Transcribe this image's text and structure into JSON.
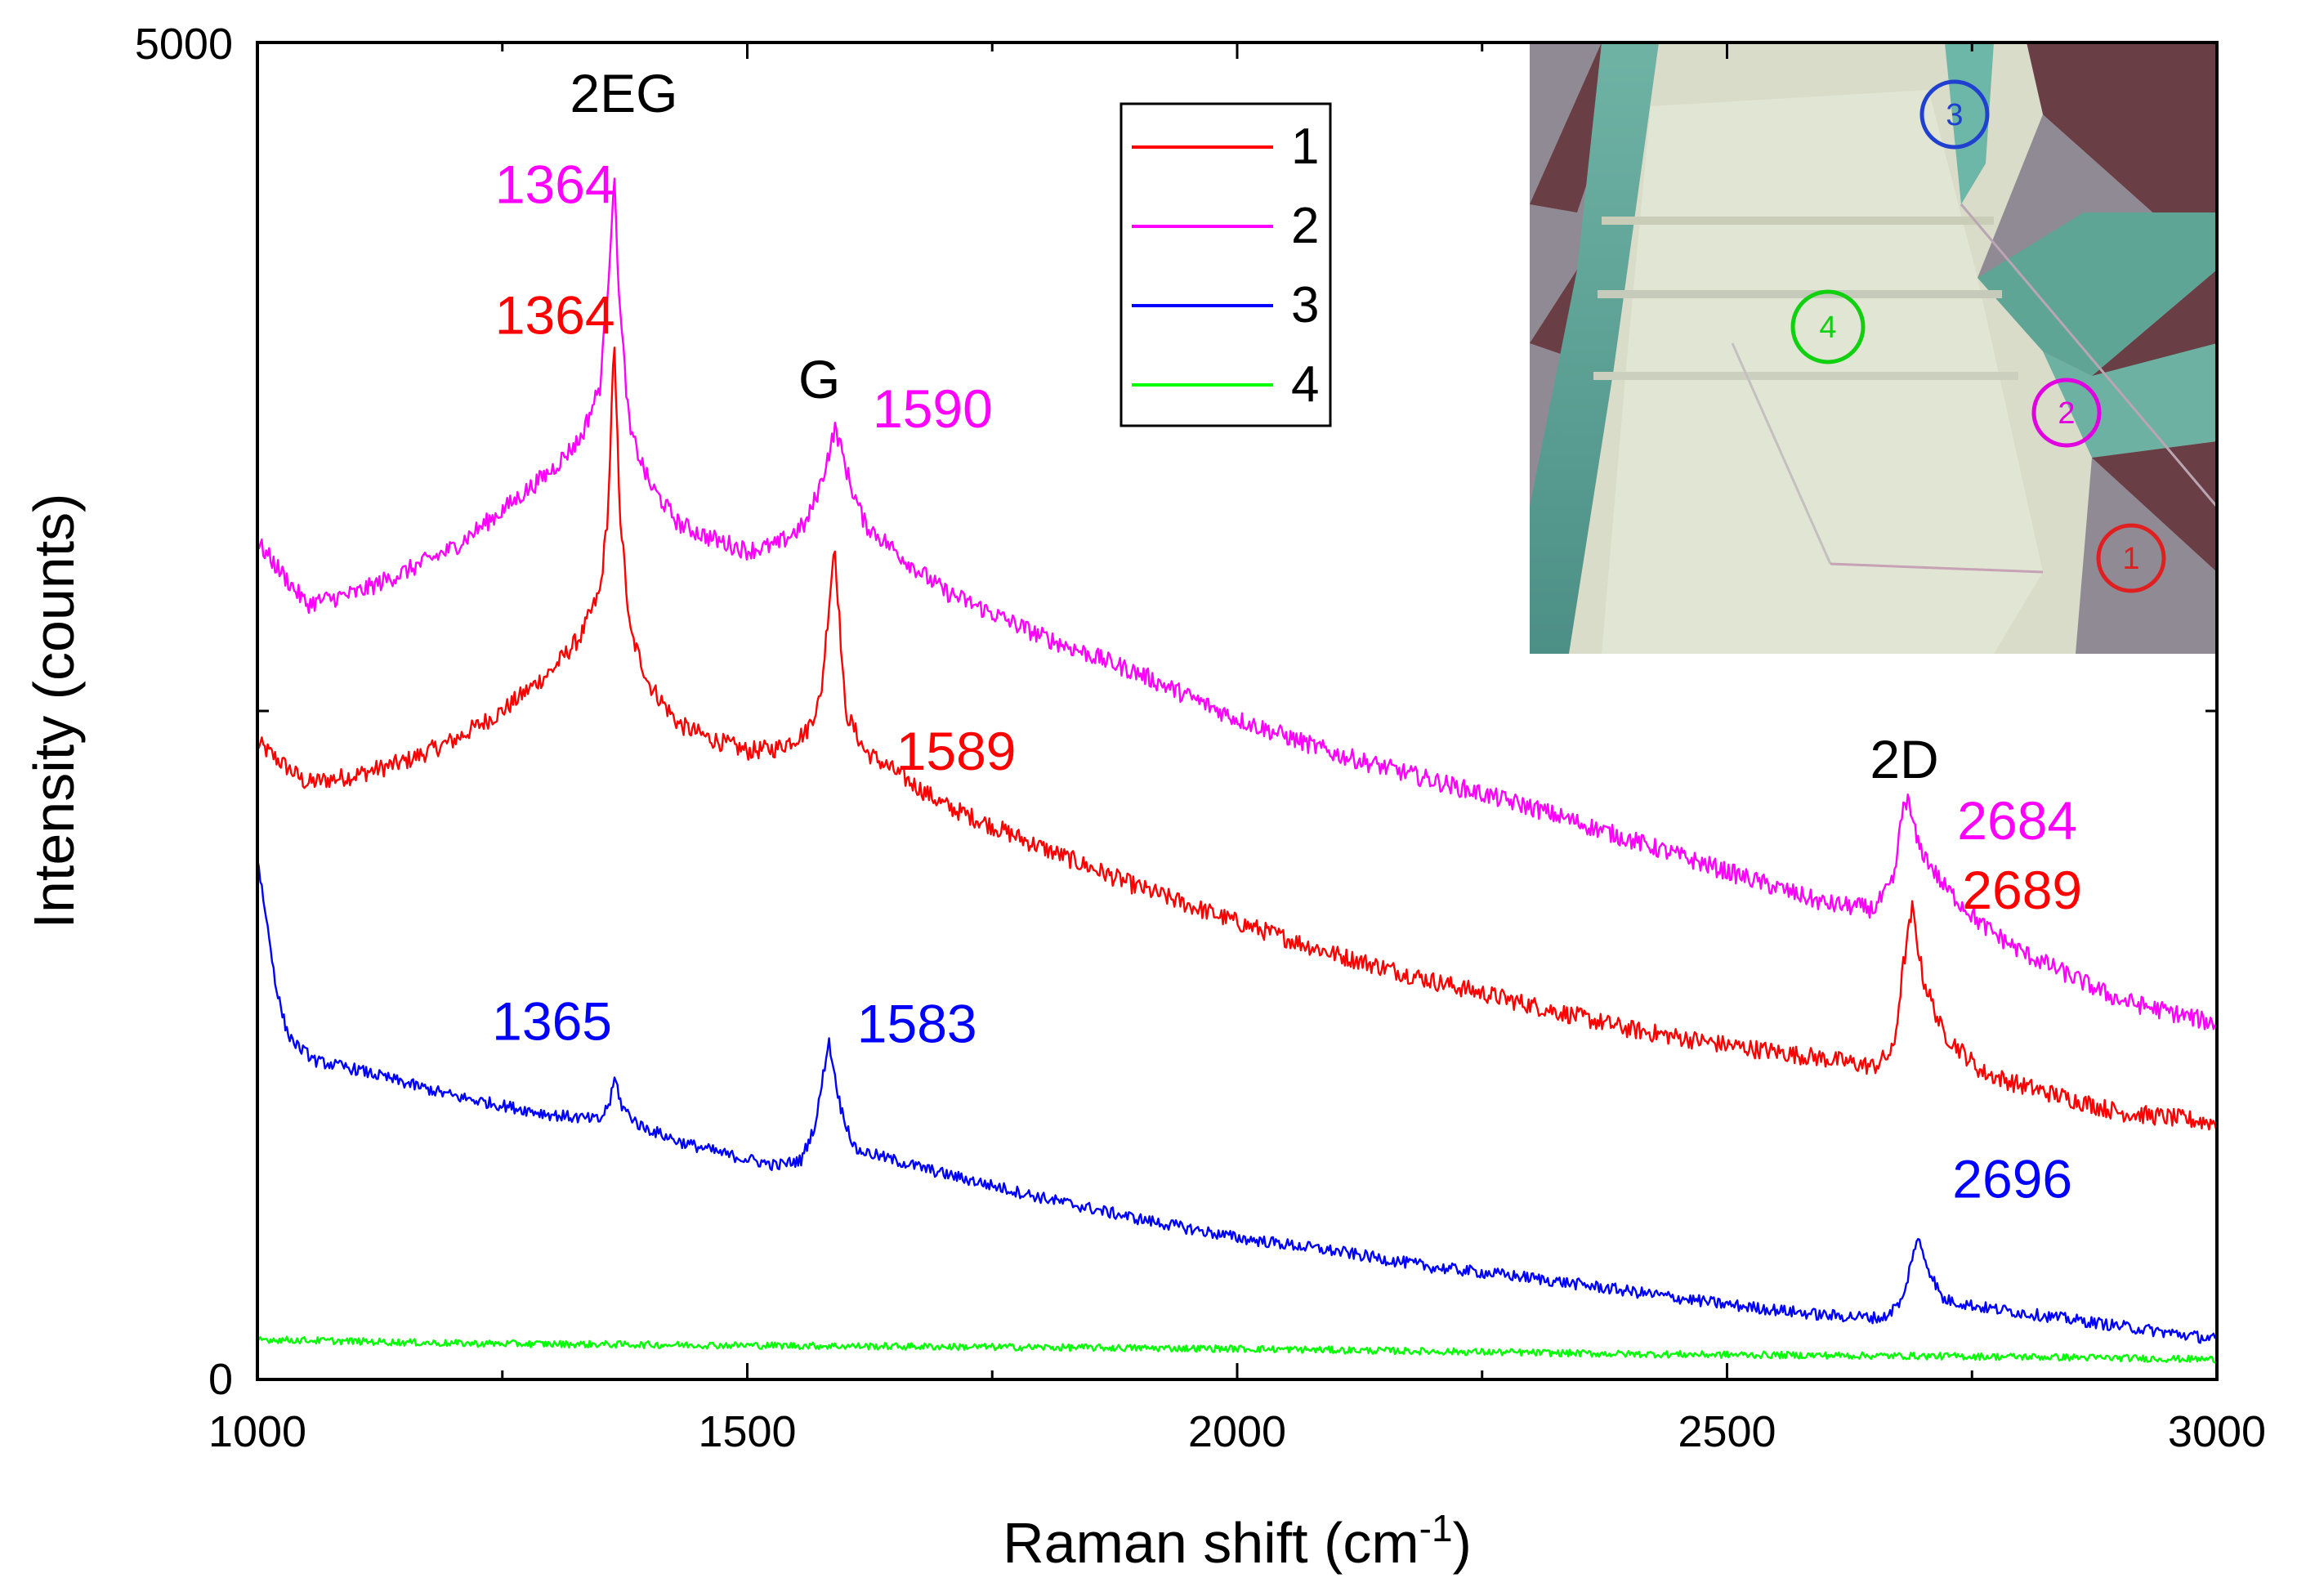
{
  "chart_data": {
    "type": "line",
    "title": "",
    "xlabel": "Raman shift (cm",
    "xlabel_sup": "-1",
    "xlabel_close": ")",
    "ylabel": "Intensity (counts)",
    "xlim": [
      1000,
      3000
    ],
    "ylim": [
      0,
      5000
    ],
    "x_ticks": [
      1000,
      1500,
      2000,
      2500,
      3000
    ],
    "x_tick_labels": [
      "1000",
      "1500",
      "2000",
      "2500",
      "3000"
    ],
    "y_tick_labels": [
      {
        "value": 0,
        "label": "0"
      },
      {
        "value": 5000,
        "label": "5000"
      }
    ],
    "y_minor_ticks": [
      2500
    ],
    "x_minor_ticks": [
      1250,
      1750,
      2250,
      2750
    ],
    "legend": {
      "position": "top-center",
      "entries": [
        {
          "label": "1",
          "color": "#ff0000"
        },
        {
          "label": "2",
          "color": "#ff00ff"
        },
        {
          "label": "3",
          "color": "#0000ff"
        },
        {
          "label": "4",
          "color": "#00ff00"
        }
      ]
    },
    "series": [
      {
        "name": "1",
        "color": "#ff0000",
        "noise": 35,
        "x": [
          1000,
          1050,
          1100,
          1150,
          1200,
          1250,
          1300,
          1330,
          1350,
          1358,
          1364,
          1370,
          1380,
          1400,
          1430,
          1460,
          1500,
          1530,
          1560,
          1575,
          1589,
          1600,
          1620,
          1660,
          1700,
          1800,
          1900,
          2000,
          2100,
          2200,
          2300,
          2400,
          2500,
          2600,
          2650,
          2670,
          2680,
          2689,
          2700,
          2720,
          2760,
          2800,
          2900,
          3000
        ],
        "y": [
          2380,
          2230,
          2260,
          2310,
          2390,
          2500,
          2650,
          2780,
          2950,
          3250,
          3880,
          3250,
          2800,
          2600,
          2450,
          2400,
          2350,
          2360,
          2420,
          2550,
          3130,
          2500,
          2350,
          2250,
          2150,
          1990,
          1840,
          1710,
          1590,
          1490,
          1400,
          1310,
          1250,
          1200,
          1170,
          1230,
          1550,
          1760,
          1500,
          1300,
          1150,
          1100,
          1000,
          960
        ]
      },
      {
        "name": "2",
        "color": "#ff00ff",
        "noise": 35,
        "x": [
          1000,
          1050,
          1100,
          1150,
          1200,
          1250,
          1300,
          1330,
          1350,
          1358,
          1364,
          1370,
          1380,
          1400,
          1430,
          1460,
          1500,
          1530,
          1560,
          1575,
          1590,
          1605,
          1620,
          1660,
          1700,
          1800,
          1900,
          2000,
          2100,
          2200,
          2300,
          2400,
          2500,
          2600,
          2650,
          2670,
          2680,
          2684,
          2695,
          2720,
          2760,
          2800,
          2900,
          3000
        ],
        "y": [
          3130,
          2900,
          2940,
          3020,
          3110,
          3250,
          3400,
          3520,
          3720,
          4100,
          4500,
          4000,
          3550,
          3350,
          3200,
          3150,
          3100,
          3120,
          3200,
          3350,
          3560,
          3350,
          3200,
          3070,
          2950,
          2780,
          2640,
          2470,
          2340,
          2240,
          2140,
          2020,
          1900,
          1780,
          1760,
          1860,
          2150,
          2170,
          2000,
          1850,
          1700,
          1600,
          1420,
          1330
        ]
      },
      {
        "name": "3",
        "color": "#0000ff",
        "noise": 22,
        "x": [
          1000,
          1010,
          1020,
          1030,
          1040,
          1060,
          1100,
          1200,
          1300,
          1350,
          1360,
          1365,
          1372,
          1390,
          1430,
          1480,
          1530,
          1555,
          1570,
          1583,
          1595,
          1610,
          1650,
          1700,
          1800,
          1900,
          2000,
          2100,
          2200,
          2300,
          2400,
          2500,
          2600,
          2660,
          2680,
          2690,
          2696,
          2705,
          2720,
          2760,
          2800,
          2900,
          3000
        ],
        "y": [
          1950,
          1700,
          1450,
          1300,
          1250,
          1190,
          1160,
          1060,
          990,
          970,
          1040,
          1130,
          1020,
          950,
          890,
          840,
          800,
          820,
          960,
          1270,
          1020,
          860,
          820,
          770,
          680,
          600,
          530,
          480,
          420,
          380,
          330,
          280,
          240,
          230,
          300,
          480,
          520,
          420,
          300,
          270,
          250,
          200,
          150
        ]
      },
      {
        "name": "4",
        "color": "#00ff00",
        "noise": 13,
        "x": [
          1000,
          1200,
          1400,
          1600,
          1800,
          2000,
          2200,
          2400,
          2600,
          2800,
          3000
        ],
        "y": [
          150,
          135,
          130,
          125,
          120,
          115,
          105,
          95,
          90,
          85,
          75
        ]
      }
    ],
    "annotations": [
      {
        "text": "2EG",
        "x": 1374,
        "y": 4740,
        "color": "#000000",
        "anchor": "middle"
      },
      {
        "text": "1364",
        "x": 1365,
        "y": 4400,
        "color": "#ff00ff",
        "anchor": "end"
      },
      {
        "text": "1364",
        "x": 1365,
        "y": 3910,
        "color": "#ff0000",
        "anchor": "end"
      },
      {
        "text": "G",
        "x": 1595,
        "y": 3670,
        "color": "#000000",
        "anchor": "end"
      },
      {
        "text": "1590",
        "x": 1628,
        "y": 3560,
        "color": "#ff00ff",
        "anchor": "start"
      },
      {
        "text": "1589",
        "x": 1652,
        "y": 2280,
        "color": "#ff0000",
        "anchor": "start"
      },
      {
        "text": "2D",
        "x": 2681,
        "y": 2250,
        "color": "#000000",
        "anchor": "middle"
      },
      {
        "text": "2684",
        "x": 2735,
        "y": 2020,
        "color": "#ff00ff",
        "anchor": "start"
      },
      {
        "text": "2689",
        "x": 2740,
        "y": 1760,
        "color": "#ff0000",
        "anchor": "start"
      },
      {
        "text": "1365",
        "x": 1362,
        "y": 1270,
        "color": "#0000ff",
        "anchor": "end"
      },
      {
        "text": "1583",
        "x": 1612,
        "y": 1260,
        "color": "#0000ff",
        "anchor": "start"
      },
      {
        "text": "2696",
        "x": 2730,
        "y": 680,
        "color": "#0000ff",
        "anchor": "start"
      }
    ],
    "inset": {
      "description_marks": [
        {
          "label": "1",
          "color": "#e02020"
        },
        {
          "label": "2",
          "color": "#e000e0"
        },
        {
          "label": "3",
          "color": "#2040d0"
        },
        {
          "label": "4",
          "color": "#10d010"
        }
      ]
    }
  }
}
